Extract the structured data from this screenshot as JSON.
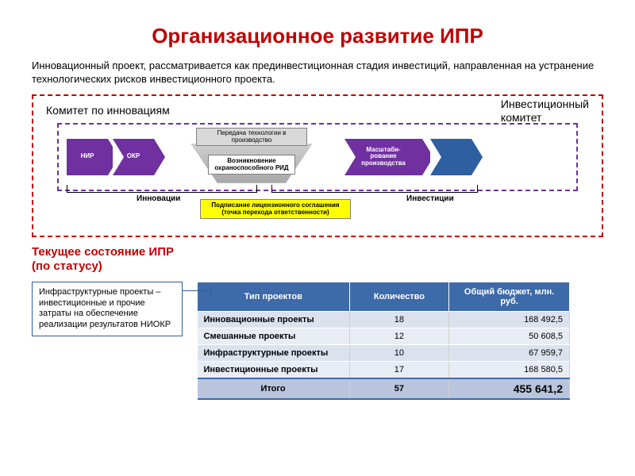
{
  "title": "Организационное  развитие  ИПР",
  "subtitle": "Инновационный проект, рассматривается как прединвестиционная стадия инвестиций, направленная на устранение технологических рисков инвестиционного проекта.",
  "diagram": {
    "outer_border_color": "#c00000",
    "inner_border_color": "#7030a0",
    "label_left": "Комитет по инновациям",
    "label_right": "Инвестиционный\nкомитет",
    "chevrons": [
      {
        "label": "НИР",
        "color": "#7030a0"
      },
      {
        "label": "ОКР",
        "color": "#7030a0"
      },
      {
        "label": "Масштаби-\nрование\nпроизводства",
        "color": "#7030a0"
      },
      {
        "label": "",
        "color": "#2e5fa0"
      }
    ],
    "grey_top": "Передача технологии в производство",
    "grey_mid": "Возникновение охраноспособного РИД",
    "yellow": "Подписание лицензионного соглашения (точка перехода ответственности)",
    "brace_labels": [
      "Инновации",
      "Инвестиции"
    ]
  },
  "section2_title": "Текущее состояние ИПР\n(по статусу)",
  "note": "Инфраструктурные проекты – инвестиционные и прочие затраты на обеспечение реализации результатов НИОКР",
  "table": {
    "header_bg": "#3d6aa8",
    "header_color": "#ffffff",
    "row_bg_odd": "#dbe2ee",
    "row_bg_even": "#e8ecf4",
    "total_bg": "#b8c5dc",
    "border_accent": "#3d6aa8",
    "columns": [
      "Тип проектов",
      "Количество",
      "Общий бюджет, млн. руб."
    ],
    "rows": [
      [
        "Инновационные проекты",
        "18",
        "168 492,5"
      ],
      [
        "Смешанные проекты",
        "12",
        "50 608,5"
      ],
      [
        "Инфраструктурные проекты",
        "10",
        "67 959,7"
      ],
      [
        "Инвестиционные проекты",
        "17",
        "168 580,5"
      ]
    ],
    "total": [
      "Итого",
      "57",
      "455 641,2"
    ]
  }
}
